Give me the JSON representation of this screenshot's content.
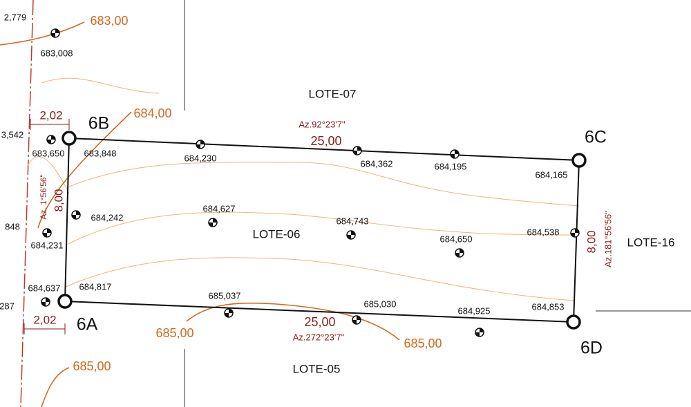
{
  "lots": {
    "north": "LOTE-07",
    "center": "LOTE-06",
    "east": "LOTE-16",
    "south": "LOTE-05"
  },
  "vertices": [
    "6A",
    "6B",
    "6C",
    "6D"
  ],
  "sides": {
    "north": {
      "length": "25,00",
      "azimuth": "Az.92°23'7\""
    },
    "south": {
      "length": "25,00",
      "azimuth": "Az.272°23'7\""
    },
    "west": {
      "length": "8,00",
      "azimuth": "Az. 1°56'56\""
    },
    "east": {
      "length": "8,00",
      "azimuth": "Az.181°56'56\""
    }
  },
  "offsets": [
    "2,02",
    "2,02"
  ],
  "contour_labels": [
    "683,00",
    "684,00",
    "685,00",
    "685,00",
    "685,00"
  ],
  "spot_elevations": [
    "683,008",
    "683,650",
    "683,848",
    "684,230",
    "684,362",
    "684,195",
    "684,165",
    "684,242",
    "684,231",
    "684,627",
    "684,743",
    "684,650",
    "684,538",
    "684,637",
    "684,817",
    "685,037",
    "685,030",
    "684,925",
    "684,853"
  ],
  "partial_labels": [
    "2,779",
    "3,542",
    "848",
    "287"
  ]
}
